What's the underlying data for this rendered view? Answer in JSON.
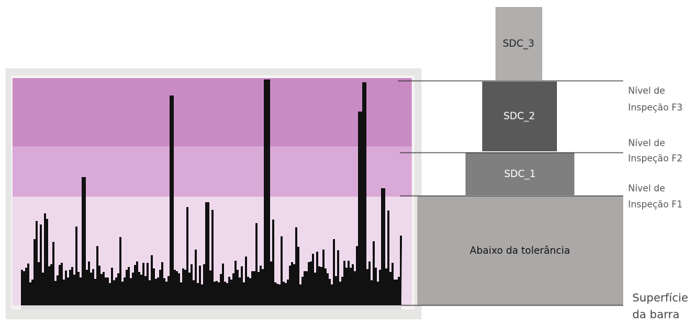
{
  "boxes": {
    "sdc3": "SDC_3",
    "sdc2": "SDC_2",
    "sdc1": "SDC_1",
    "below": "Abaixo da tolerância"
  },
  "levels": [
    {
      "line1": "Nível de",
      "line2": "Inspeção F3"
    },
    {
      "line1": "Nível de",
      "line2": "Inspeção F2"
    },
    {
      "line1": "Nível de",
      "line2": "Inspeção F1"
    }
  ],
  "surface": {
    "line1": "Superfície",
    "line2": "da barra"
  }
}
